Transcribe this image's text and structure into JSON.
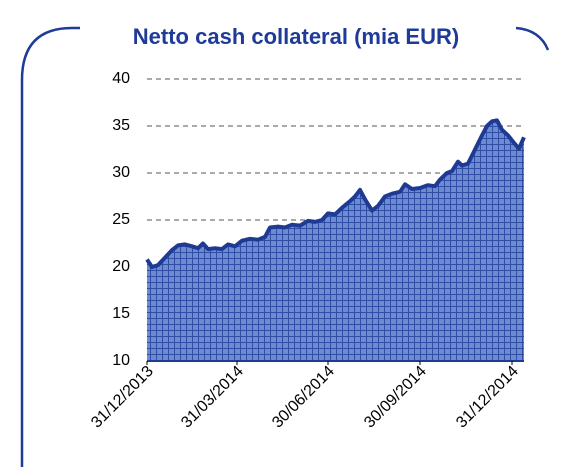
{
  "chart_data": {
    "type": "area",
    "title": "Netto cash collateral (mia EUR)",
    "x": [
      "31/12/2013",
      "05/01/2014",
      "11/01/2014",
      "18/01/2014",
      "25/01/2014",
      "31/01/2014",
      "07/02/2014",
      "14/02/2014",
      "20/02/2014",
      "25/02/2014",
      "02/03/2014",
      "09/03/2014",
      "16/03/2014",
      "22/03/2014",
      "29/03/2014",
      "05/04/2014",
      "13/04/2014",
      "21/04/2014",
      "28/04/2014",
      "03/05/2014",
      "11/05/2014",
      "18/05/2014",
      "25/05/2014",
      "02/06/2014",
      "10/06/2014",
      "17/06/2014",
      "24/06/2014",
      "30/06/2014",
      "07/07/2014",
      "14/07/2014",
      "22/07/2014",
      "27/07/2014",
      "01/08/2014",
      "06/08/2014",
      "13/08/2014",
      "19/08/2014",
      "26/08/2014",
      "02/09/2014",
      "10/09/2014",
      "15/09/2014",
      "22/09/2014",
      "30/09/2014",
      "08/10/2014",
      "15/10/2014",
      "20/10/2014",
      "27/10/2014",
      "01/11/2014",
      "07/11/2014",
      "11/11/2014",
      "17/11/2014",
      "24/11/2014",
      "01/12/2014",
      "06/12/2014",
      "11/12/2014",
      "16/12/2014",
      "21/12/2014",
      "27/12/2014",
      "02/01/2015",
      "07/01/2015",
      "12/01/2015"
    ],
    "series": [
      {
        "name": "Netto cash collateral",
        "color": "#1f3a93",
        "fill": "#6f8bd0",
        "values": [
          20.8,
          20.0,
          20.2,
          21.0,
          21.8,
          22.3,
          22.4,
          22.2,
          22.0,
          22.5,
          21.9,
          22.0,
          21.9,
          22.4,
          22.2,
          22.8,
          23.0,
          22.9,
          23.2,
          24.2,
          24.3,
          24.2,
          24.5,
          24.4,
          24.9,
          24.8,
          25.0,
          25.7,
          25.6,
          26.3,
          27.0,
          27.5,
          28.2,
          27.2,
          26.0,
          26.5,
          27.5,
          27.8,
          28.0,
          28.8,
          28.3,
          28.4,
          28.7,
          28.6,
          29.3,
          30.0,
          30.2,
          31.2,
          30.8,
          31.0,
          32.5,
          34.0,
          35.0,
          35.5,
          35.6,
          34.6,
          34.0,
          33.2,
          32.6,
          33.8
        ]
      }
    ],
    "xlim": [
      "31/12/2013",
      "12/01/2015"
    ],
    "xticks": [
      "31/12/2013",
      "31/03/2014",
      "30/06/2014",
      "30/09/2014",
      "31/12/2014"
    ],
    "ylim": [
      10,
      40
    ],
    "yticks": [
      10,
      15,
      20,
      25,
      30,
      35,
      40
    ],
    "grid": true
  }
}
